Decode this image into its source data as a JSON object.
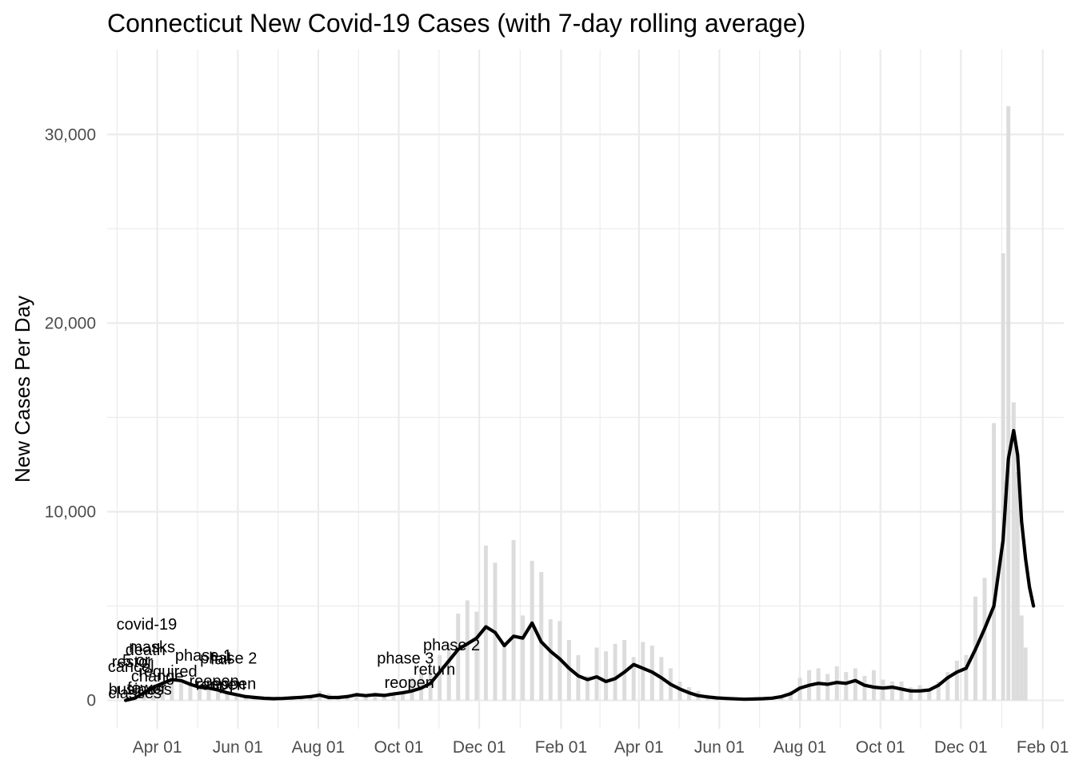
{
  "chart_data": {
    "type": "bar",
    "title": "Connecticut New Covid-19 Cases (with 7-day rolling average)",
    "xlabel": "",
    "ylabel": "New Cases Per Day",
    "x_ticks": [
      "Apr 01",
      "Jun 01",
      "Aug 01",
      "Oct 01",
      "Dec 01",
      "Feb 01",
      "Apr 01",
      "Jun 01",
      "Aug 01",
      "Oct 01",
      "Dec 01",
      "Feb 01"
    ],
    "x_tick_dates": [
      "2020-04-01",
      "2020-06-01",
      "2020-08-01",
      "2020-10-01",
      "2020-12-01",
      "2021-02-01",
      "2021-04-01",
      "2021-06-01",
      "2021-08-01",
      "2021-10-01",
      "2021-12-01",
      "2022-02-01"
    ],
    "y_ticks": [
      "0",
      "10,000",
      "20,000",
      "30,000"
    ],
    "y_tick_values": [
      0,
      10000,
      20000,
      30000
    ],
    "xlim": [
      "2020-02-23",
      "2022-02-17"
    ],
    "ylim": [
      -1500,
      34500
    ],
    "grid": true,
    "series": [
      {
        "type": "bar",
        "color": "#dcdcdc",
        "points": [
          [
            "2020-03-08",
            0
          ],
          [
            "2020-03-15",
            120
          ],
          [
            "2020-03-22",
            500
          ],
          [
            "2020-03-29",
            850
          ],
          [
            "2020-04-05",
            1000
          ],
          [
            "2020-04-12",
            1250
          ],
          [
            "2020-04-19",
            1000
          ],
          [
            "2020-04-26",
            850
          ],
          [
            "2020-05-03",
            700
          ],
          [
            "2020-05-10",
            650
          ],
          [
            "2020-05-17",
            550
          ],
          [
            "2020-05-24",
            400
          ],
          [
            "2020-05-31",
            300
          ],
          [
            "2020-06-07",
            200
          ],
          [
            "2020-06-14",
            150
          ],
          [
            "2020-06-21",
            110
          ],
          [
            "2020-06-28",
            100
          ],
          [
            "2020-07-05",
            120
          ],
          [
            "2020-07-12",
            150
          ],
          [
            "2020-07-19",
            180
          ],
          [
            "2020-07-26",
            250
          ],
          [
            "2020-08-02",
            500
          ],
          [
            "2020-08-09",
            350
          ],
          [
            "2020-08-16",
            200
          ],
          [
            "2020-08-23",
            300
          ],
          [
            "2020-08-30",
            400
          ],
          [
            "2020-09-06",
            300
          ],
          [
            "2020-09-13",
            400
          ],
          [
            "2020-09-20",
            300
          ],
          [
            "2020-09-27",
            400
          ],
          [
            "2020-10-04",
            500
          ],
          [
            "2020-10-11",
            1200
          ],
          [
            "2020-10-18",
            1400
          ],
          [
            "2020-10-25",
            1700
          ],
          [
            "2020-11-01",
            2400
          ],
          [
            "2020-11-08",
            3000
          ],
          [
            "2020-11-15",
            4600
          ],
          [
            "2020-11-22",
            5300
          ],
          [
            "2020-11-29",
            4700
          ],
          [
            "2020-12-06",
            8200
          ],
          [
            "2020-12-13",
            7300
          ],
          [
            "2020-12-20",
            3000
          ],
          [
            "2020-12-27",
            8500
          ],
          [
            "2021-01-03",
            4500
          ],
          [
            "2021-01-10",
            7400
          ],
          [
            "2021-01-17",
            6800
          ],
          [
            "2021-01-24",
            4300
          ],
          [
            "2021-01-31",
            4200
          ],
          [
            "2021-02-07",
            3200
          ],
          [
            "2021-02-14",
            2400
          ],
          [
            "2021-02-21",
            1300
          ],
          [
            "2021-02-28",
            2800
          ],
          [
            "2021-03-07",
            2600
          ],
          [
            "2021-03-14",
            3000
          ],
          [
            "2021-03-21",
            3200
          ],
          [
            "2021-03-28",
            2300
          ],
          [
            "2021-04-04",
            3100
          ],
          [
            "2021-04-11",
            2900
          ],
          [
            "2021-04-18",
            2300
          ],
          [
            "2021-04-25",
            1700
          ],
          [
            "2021-05-02",
            1000
          ],
          [
            "2021-05-09",
            700
          ],
          [
            "2021-05-16",
            500
          ],
          [
            "2021-05-23",
            300
          ],
          [
            "2021-05-30",
            200
          ],
          [
            "2021-06-06",
            150
          ],
          [
            "2021-06-13",
            100
          ],
          [
            "2021-06-20",
            80
          ],
          [
            "2021-06-27",
            80
          ],
          [
            "2021-07-04",
            100
          ],
          [
            "2021-07-11",
            150
          ],
          [
            "2021-07-18",
            250
          ],
          [
            "2021-07-25",
            500
          ],
          [
            "2021-08-01",
            1200
          ],
          [
            "2021-08-08",
            1600
          ],
          [
            "2021-08-15",
            1700
          ],
          [
            "2021-08-22",
            1400
          ],
          [
            "2021-08-29",
            1800
          ],
          [
            "2021-09-05",
            1500
          ],
          [
            "2021-09-12",
            1700
          ],
          [
            "2021-09-19",
            1300
          ],
          [
            "2021-09-26",
            1600
          ],
          [
            "2021-10-03",
            1100
          ],
          [
            "2021-10-10",
            1000
          ],
          [
            "2021-10-17",
            1000
          ],
          [
            "2021-10-24",
            700
          ],
          [
            "2021-10-31",
            800
          ],
          [
            "2021-11-07",
            600
          ],
          [
            "2021-11-14",
            1000
          ],
          [
            "2021-11-21",
            1500
          ],
          [
            "2021-11-28",
            2100
          ],
          [
            "2021-12-05",
            2400
          ],
          [
            "2021-12-12",
            5500
          ],
          [
            "2021-12-19",
            6500
          ],
          [
            "2021-12-26",
            14700
          ],
          [
            "2022-01-02",
            23700
          ],
          [
            "2022-01-06",
            31500
          ],
          [
            "2022-01-10",
            15800
          ],
          [
            "2022-01-13",
            12100
          ],
          [
            "2022-01-16",
            4500
          ],
          [
            "2022-01-19",
            2800
          ]
        ]
      },
      {
        "type": "line",
        "color": "#000000",
        "points": [
          [
            "2020-03-08",
            0
          ],
          [
            "2020-03-15",
            120
          ],
          [
            "2020-03-22",
            400
          ],
          [
            "2020-03-29",
            700
          ],
          [
            "2020-04-05",
            900
          ],
          [
            "2020-04-12",
            1100
          ],
          [
            "2020-04-19",
            1050
          ],
          [
            "2020-04-26",
            850
          ],
          [
            "2020-05-03",
            700
          ],
          [
            "2020-05-10",
            650
          ],
          [
            "2020-05-17",
            550
          ],
          [
            "2020-05-24",
            400
          ],
          [
            "2020-05-31",
            300
          ],
          [
            "2020-06-07",
            200
          ],
          [
            "2020-06-14",
            150
          ],
          [
            "2020-06-21",
            110
          ],
          [
            "2020-06-28",
            90
          ],
          [
            "2020-07-05",
            100
          ],
          [
            "2020-07-12",
            130
          ],
          [
            "2020-07-19",
            160
          ],
          [
            "2020-07-26",
            200
          ],
          [
            "2020-08-02",
            280
          ],
          [
            "2020-08-09",
            150
          ],
          [
            "2020-08-16",
            150
          ],
          [
            "2020-08-23",
            200
          ],
          [
            "2020-08-30",
            300
          ],
          [
            "2020-09-06",
            250
          ],
          [
            "2020-09-13",
            300
          ],
          [
            "2020-09-20",
            260
          ],
          [
            "2020-09-27",
            340
          ],
          [
            "2020-10-04",
            400
          ],
          [
            "2020-10-11",
            500
          ],
          [
            "2020-10-18",
            650
          ],
          [
            "2020-10-25",
            900
          ],
          [
            "2020-11-01",
            1500
          ],
          [
            "2020-11-08",
            2100
          ],
          [
            "2020-11-15",
            2700
          ],
          [
            "2020-11-22",
            3000
          ],
          [
            "2020-11-29",
            3300
          ],
          [
            "2020-12-06",
            3900
          ],
          [
            "2020-12-13",
            3600
          ],
          [
            "2020-12-20",
            2900
          ],
          [
            "2020-12-27",
            3400
          ],
          [
            "2021-01-03",
            3300
          ],
          [
            "2021-01-10",
            4100
          ],
          [
            "2021-01-17",
            3100
          ],
          [
            "2021-01-24",
            2600
          ],
          [
            "2021-01-31",
            2200
          ],
          [
            "2021-02-07",
            1700
          ],
          [
            "2021-02-14",
            1300
          ],
          [
            "2021-02-21",
            1100
          ],
          [
            "2021-02-28",
            1250
          ],
          [
            "2021-03-07",
            1000
          ],
          [
            "2021-03-14",
            1150
          ],
          [
            "2021-03-21",
            1500
          ],
          [
            "2021-03-28",
            1900
          ],
          [
            "2021-04-04",
            1700
          ],
          [
            "2021-04-11",
            1500
          ],
          [
            "2021-04-18",
            1200
          ],
          [
            "2021-04-25",
            850
          ],
          [
            "2021-05-02",
            600
          ],
          [
            "2021-05-09",
            400
          ],
          [
            "2021-05-16",
            250
          ],
          [
            "2021-05-23",
            180
          ],
          [
            "2021-05-30",
            130
          ],
          [
            "2021-06-06",
            100
          ],
          [
            "2021-06-13",
            80
          ],
          [
            "2021-06-20",
            60
          ],
          [
            "2021-06-27",
            70
          ],
          [
            "2021-07-04",
            90
          ],
          [
            "2021-07-11",
            120
          ],
          [
            "2021-07-18",
            200
          ],
          [
            "2021-07-25",
            350
          ],
          [
            "2021-08-01",
            650
          ],
          [
            "2021-08-08",
            800
          ],
          [
            "2021-08-15",
            900
          ],
          [
            "2021-08-22",
            850
          ],
          [
            "2021-08-29",
            950
          ],
          [
            "2021-09-05",
            900
          ],
          [
            "2021-09-12",
            1050
          ],
          [
            "2021-09-19",
            800
          ],
          [
            "2021-09-26",
            700
          ],
          [
            "2021-10-03",
            650
          ],
          [
            "2021-10-10",
            700
          ],
          [
            "2021-10-17",
            600
          ],
          [
            "2021-10-24",
            500
          ],
          [
            "2021-10-31",
            500
          ],
          [
            "2021-11-07",
            550
          ],
          [
            "2021-11-14",
            800
          ],
          [
            "2021-11-21",
            1200
          ],
          [
            "2021-11-28",
            1500
          ],
          [
            "2021-12-05",
            1700
          ],
          [
            "2021-12-12",
            2700
          ],
          [
            "2021-12-19",
            3800
          ],
          [
            "2021-12-26",
            5000
          ],
          [
            "2022-01-02",
            8500
          ],
          [
            "2022-01-06",
            12800
          ],
          [
            "2022-01-10",
            14300
          ],
          [
            "2022-01-13",
            13000
          ],
          [
            "2022-01-16",
            9500
          ],
          [
            "2022-01-19",
            7500
          ],
          [
            "2022-01-22",
            6000
          ],
          [
            "2022-01-25",
            5000
          ]
        ]
      }
    ],
    "annotations": [
      {
        "date": "2020-03-24",
        "y": 4050,
        "text": "covid-19"
      },
      {
        "date": "2020-03-28",
        "y": 2850,
        "text": "masks"
      },
      {
        "date": "2020-03-23",
        "y": 2700,
        "text": "death"
      },
      {
        "date": "2020-05-06",
        "y": 2400,
        "text": "phase 1"
      },
      {
        "date": "2020-05-25",
        "y": 2250,
        "text": "phase 2"
      },
      {
        "date": "2020-05-19",
        "y": 2200,
        "text": "fail"
      },
      {
        "date": "2020-03-16",
        "y": 2150,
        "text": "5 or"
      },
      {
        "date": "2020-03-13",
        "y": 2050,
        "text": "restor"
      },
      {
        "date": "2020-03-12",
        "y": 1800,
        "text": "cancel"
      },
      {
        "date": "2020-04-09",
        "y": 1550,
        "text": "required"
      },
      {
        "date": "2020-04-01",
        "y": 1300,
        "text": "change"
      },
      {
        "date": "2020-05-14",
        "y": 1050,
        "text": "reopen"
      },
      {
        "date": "2020-05-27",
        "y": 900,
        "text": "reopen"
      },
      {
        "date": "2020-05-19",
        "y": 850,
        "text": "reopen"
      },
      {
        "date": "2020-03-24",
        "y": 650,
        "text": "fewer"
      },
      {
        "date": "2020-03-19",
        "y": 600,
        "text": "business"
      },
      {
        "date": "2020-03-15",
        "y": 400,
        "text": "classes"
      },
      {
        "date": "2020-11-10",
        "y": 2950,
        "text": "phase 2"
      },
      {
        "date": "2020-10-06",
        "y": 2250,
        "text": "phase 3"
      },
      {
        "date": "2020-10-28",
        "y": 1650,
        "text": "return"
      },
      {
        "date": "2020-10-09",
        "y": 950,
        "text": "reopen"
      }
    ]
  }
}
